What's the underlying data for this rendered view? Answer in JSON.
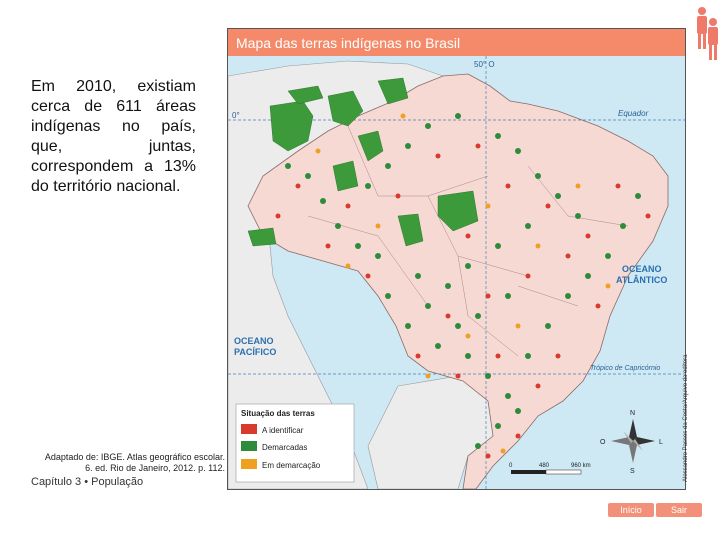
{
  "header": {
    "map_title": "Mapa das terras indígenas no Brasil"
  },
  "intro": {
    "text": "Em 2010, existiam cerca de 611 áreas indígenas no país, que, juntas, correspondem a 13% do território nacional."
  },
  "map": {
    "labels": {
      "meridian": "50° O",
      "equator_degree": "0°",
      "equator": "Equador",
      "atlantic_ocean": [
        "OCEANO",
        "ATLÂNTICO"
      ],
      "pacific_ocean": [
        "OCEANO",
        "PACÍFICO"
      ],
      "capricorn": "Trópico de Capricórnio"
    },
    "compass": {
      "n": "N",
      "s": "S",
      "l": "L",
      "o": "O"
    },
    "scale": {
      "ticks": [
        "0",
        "480",
        "960 km"
      ]
    },
    "legend": {
      "title": "Situação das terras",
      "items": [
        {
          "label": "A identificar",
          "color": "#d83a2b"
        },
        {
          "label": "Demarcadas",
          "color": "#2e8b3a"
        },
        {
          "label": "Em demarcação",
          "color": "#f0a020"
        }
      ]
    },
    "colors": {
      "ocean": "#cfe9f4",
      "brazil": "#f6d9d3",
      "neighbors": "#ececec"
    }
  },
  "source": {
    "text": "Adaptado de: IBGE. Atlas geográfico escolar. 6. ed. Rio de Janeiro, 2012. p. 112."
  },
  "credit": {
    "text": "Alessandro Passos da Costa/Arquivo da editora"
  },
  "footer": {
    "chapter": "Capítulo 3 • População"
  },
  "nav": {
    "inicio": "Início",
    "sair": "Sair"
  }
}
